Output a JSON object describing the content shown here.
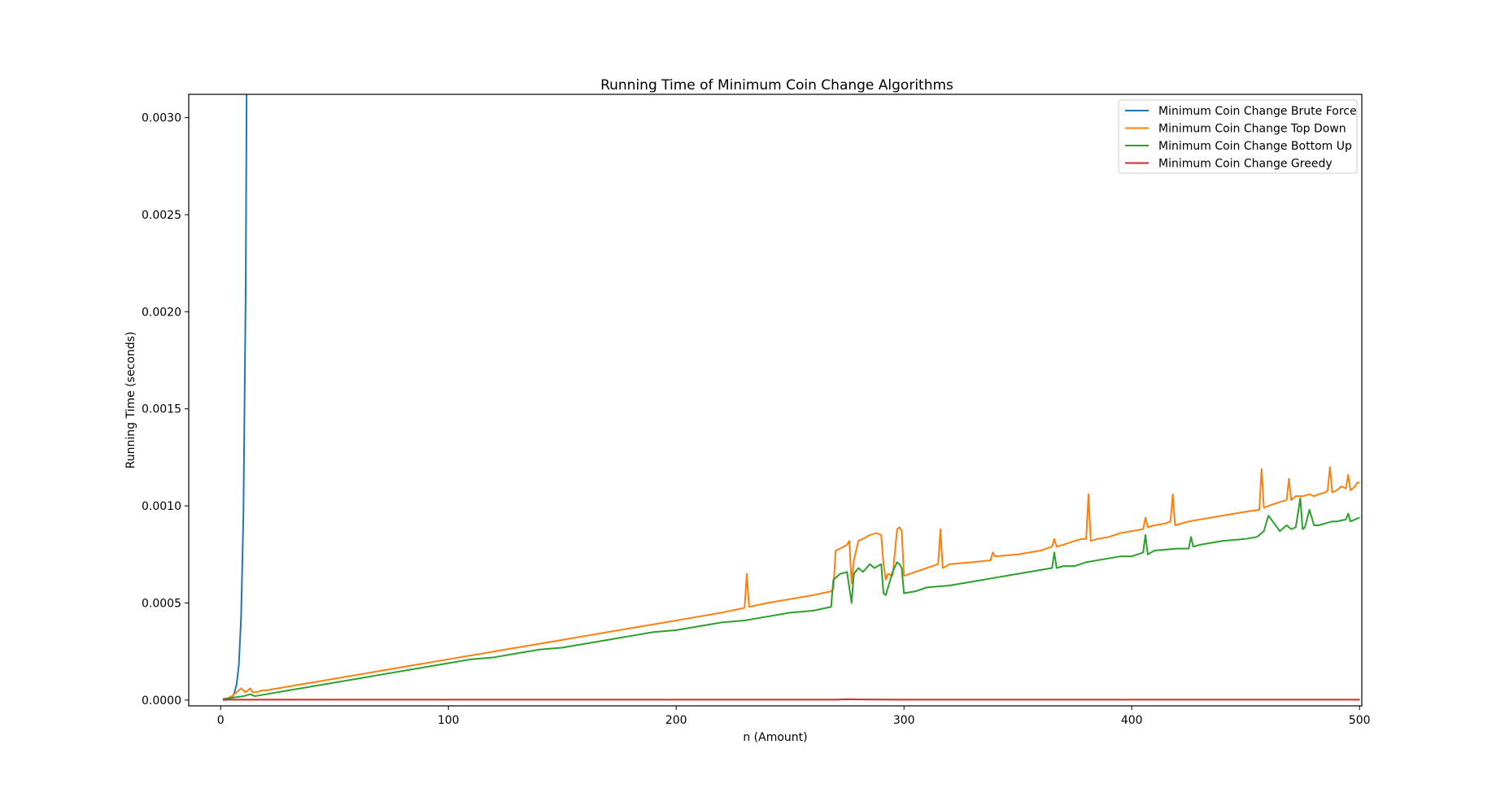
{
  "chart_data": {
    "type": "line",
    "title": "Running Time of Minimum Coin Change Algorithms",
    "xlabel": "n (Amount)",
    "ylabel": "Running Time (seconds)",
    "xlim": [
      -14,
      501
    ],
    "ylim": [
      -3e-05,
      0.00312
    ],
    "xticks": [
      0,
      100,
      200,
      300,
      400,
      500
    ],
    "xtick_labels": [
      "0",
      "100",
      "200",
      "300",
      "400",
      "500"
    ],
    "yticks": [
      0,
      0.0005,
      0.001,
      0.0015,
      0.002,
      0.0025,
      0.003
    ],
    "ytick_labels": [
      "0.0000",
      "0.0005",
      "0.0010",
      "0.0015",
      "0.0020",
      "0.0025",
      "0.0030"
    ],
    "grid": false,
    "legend_position": "top-right",
    "series": [
      {
        "name": "Minimum Coin Change Brute Force",
        "color": "#1f77b4",
        "x": [
          1,
          2,
          3,
          4,
          5,
          6,
          7,
          8,
          9,
          10,
          11,
          12
        ],
        "y": [
          5e-07,
          1e-06,
          2e-06,
          6e-06,
          1.5e-05,
          3.5e-05,
          8e-05,
          0.00018,
          0.00043,
          0.00095,
          0.0021,
          0.0046
        ]
      },
      {
        "name": "Minimum Coin Change Top Down",
        "color": "#ff7f0e",
        "x": [
          1,
          3,
          5,
          7,
          9,
          11,
          13,
          14,
          16,
          18,
          20,
          25,
          30,
          40,
          50,
          60,
          70,
          80,
          90,
          100,
          110,
          120,
          130,
          140,
          150,
          160,
          170,
          180,
          190,
          200,
          210,
          220,
          228,
          230,
          231,
          232,
          240,
          250,
          260,
          268,
          269,
          270,
          272,
          275,
          276,
          277,
          278,
          280,
          282,
          285,
          288,
          290,
          291,
          292,
          293,
          295,
          297,
          298,
          299,
          300,
          305,
          310,
          315,
          316,
          317,
          320,
          330,
          338,
          339,
          340,
          350,
          360,
          365,
          366,
          367,
          370,
          375,
          378,
          380,
          381,
          382,
          385,
          390,
          395,
          400,
          405,
          406,
          407,
          410,
          415,
          417,
          418,
          419,
          425,
          430,
          440,
          445,
          450,
          456,
          457,
          458,
          460,
          465,
          468,
          469,
          470,
          472,
          475,
          478,
          480,
          482,
          485,
          486,
          487,
          488,
          490,
          492,
          494,
          495,
          496,
          498,
          499,
          500
        ],
        "y": [
          5e-06,
          8e-06,
          2e-05,
          4e-05,
          6e-05,
          4e-05,
          6e-05,
          4e-05,
          4e-05,
          5e-05,
          5e-05,
          6e-05,
          7e-05,
          9e-05,
          0.00011,
          0.00013,
          0.00015,
          0.00017,
          0.00019,
          0.00021,
          0.00023,
          0.00025,
          0.00027,
          0.00029,
          0.00031,
          0.00033,
          0.00035,
          0.00037,
          0.00039,
          0.00041,
          0.00043,
          0.00045,
          0.00047,
          0.000475,
          0.00065,
          0.00048,
          0.0005,
          0.00052,
          0.00054,
          0.00056,
          0.00057,
          0.00077,
          0.00078,
          0.0008,
          0.00082,
          0.0006,
          0.00072,
          0.00082,
          0.00083,
          0.00085,
          0.00086,
          0.00085,
          0.0007,
          0.00062,
          0.00065,
          0.00064,
          0.00088,
          0.00089,
          0.00087,
          0.00064,
          0.00066,
          0.00068,
          0.0007,
          0.00088,
          0.00068,
          0.0007,
          0.00071,
          0.00072,
          0.00076,
          0.00074,
          0.00075,
          0.00077,
          0.00079,
          0.00083,
          0.00079,
          0.0008,
          0.00082,
          0.00083,
          0.00083,
          0.00106,
          0.00082,
          0.00083,
          0.00084,
          0.00086,
          0.00087,
          0.00088,
          0.00094,
          0.00089,
          0.0009,
          0.00091,
          0.00092,
          0.00106,
          0.0009,
          0.00092,
          0.00093,
          0.00095,
          0.00096,
          0.00097,
          0.00098,
          0.00119,
          0.00099,
          0.001,
          0.00102,
          0.00103,
          0.00114,
          0.00103,
          0.00105,
          0.00105,
          0.00106,
          0.00105,
          0.00106,
          0.00107,
          0.00108,
          0.0012,
          0.00107,
          0.00108,
          0.0011,
          0.00109,
          0.00116,
          0.00108,
          0.0011,
          0.00112,
          0.00112
        ]
      },
      {
        "name": "Minimum Coin Change Bottom Up",
        "color": "#2ca02c",
        "x": [
          1,
          5,
          10,
          13,
          15,
          20,
          30,
          40,
          50,
          60,
          70,
          80,
          90,
          100,
          110,
          120,
          130,
          140,
          150,
          160,
          170,
          180,
          190,
          200,
          210,
          220,
          230,
          240,
          250,
          260,
          268,
          269,
          270,
          272,
          275,
          277,
          278,
          280,
          282,
          285,
          287,
          290,
          291,
          292,
          293,
          295,
          297,
          298,
          299,
          300,
          305,
          310,
          320,
          330,
          340,
          350,
          360,
          365,
          366,
          367,
          370,
          375,
          380,
          390,
          395,
          400,
          405,
          406,
          407,
          410,
          420,
          425,
          426,
          427,
          430,
          440,
          450,
          455,
          458,
          460,
          465,
          468,
          470,
          472,
          474,
          475,
          476,
          478,
          480,
          482,
          485,
          488,
          490,
          494,
          495,
          496,
          498,
          500
        ],
        "y": [
          5e-06,
          1.2e-05,
          2e-05,
          3e-05,
          2e-05,
          3e-05,
          5e-05,
          7e-05,
          9e-05,
          0.00011,
          0.00013,
          0.00015,
          0.00017,
          0.00019,
          0.00021,
          0.00022,
          0.00024,
          0.00026,
          0.00027,
          0.00029,
          0.00031,
          0.00033,
          0.00035,
          0.00036,
          0.00038,
          0.0004,
          0.00041,
          0.00043,
          0.00045,
          0.00046,
          0.00048,
          0.00062,
          0.00063,
          0.00065,
          0.00066,
          0.0005,
          0.00065,
          0.00068,
          0.00066,
          0.0007,
          0.00068,
          0.0007,
          0.00055,
          0.00054,
          0.00058,
          0.00066,
          0.00071,
          0.0007,
          0.00068,
          0.00055,
          0.00056,
          0.00058,
          0.00059,
          0.00061,
          0.00063,
          0.00065,
          0.00067,
          0.00068,
          0.00076,
          0.00068,
          0.00069,
          0.00069,
          0.00071,
          0.00073,
          0.00074,
          0.00074,
          0.00076,
          0.00085,
          0.00075,
          0.00077,
          0.00078,
          0.00078,
          0.00084,
          0.00079,
          0.0008,
          0.00082,
          0.00083,
          0.00084,
          0.00087,
          0.00095,
          0.00087,
          0.0009,
          0.00088,
          0.00089,
          0.00104,
          0.00088,
          0.00089,
          0.00098,
          0.0009,
          0.0009,
          0.00091,
          0.00092,
          0.00092,
          0.00093,
          0.00096,
          0.00092,
          0.00093,
          0.00094
        ]
      },
      {
        "name": "Minimum Coin Change Greedy",
        "color": "#d62728",
        "x": [
          1,
          50,
          100,
          150,
          200,
          250,
          270,
          275,
          280,
          300,
          350,
          400,
          450,
          500
        ],
        "y": [
          2e-06,
          2e-06,
          2e-06,
          2e-06,
          2e-06,
          2e-06,
          2e-06,
          4e-06,
          3e-06,
          2e-06,
          2e-06,
          2e-06,
          2e-06,
          2e-06
        ]
      }
    ]
  }
}
